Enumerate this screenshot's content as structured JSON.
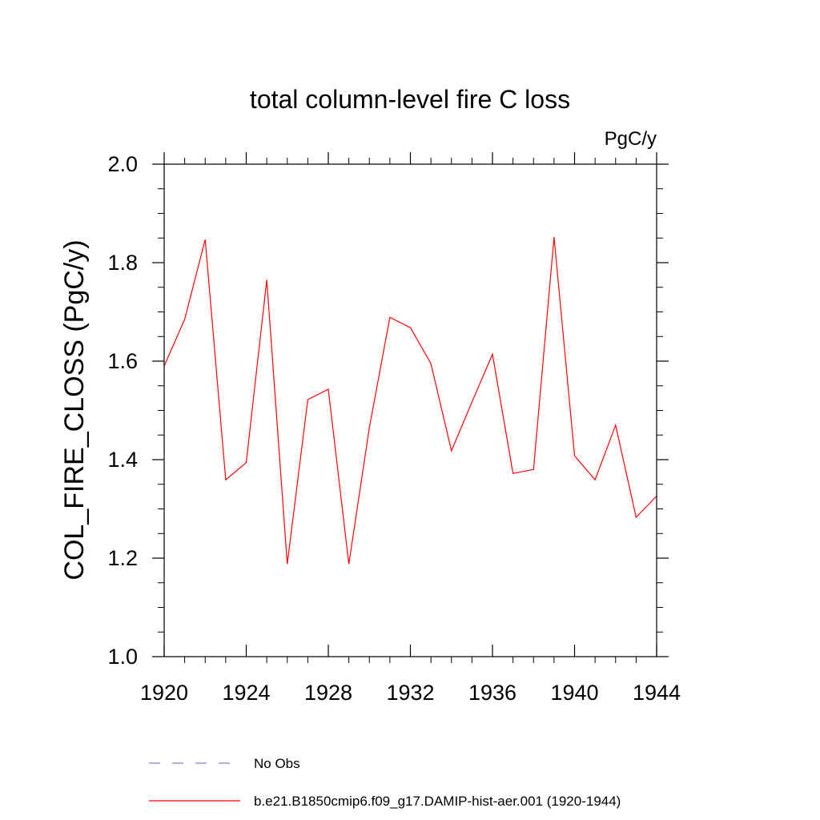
{
  "chart_data": {
    "type": "line",
    "title": "total column-level fire C loss",
    "units_label": "PgC/y",
    "ylabel": "COL_FIRE_CLOSS  (PgC/y)",
    "xlabel": "",
    "xlim": [
      1920,
      1944
    ],
    "ylim": [
      1.0,
      2.0
    ],
    "x_ticks": [
      1920,
      1924,
      1928,
      1932,
      1936,
      1940,
      1944
    ],
    "y_ticks": [
      1.0,
      1.2,
      1.4,
      1.6,
      1.8,
      2.0
    ],
    "y_tick_labels": [
      "1.0",
      "1.2",
      "1.4",
      "1.6",
      "1.8",
      "2.0"
    ],
    "grid": false,
    "legend_position": "bottom",
    "series": [
      {
        "name": "b.e21.B1850cmip6.f09_g17.DAMIP-hist-aer.001 (1920-1944)",
        "color": "#ff0000",
        "dash": "solid",
        "x": [
          1920,
          1921,
          1922,
          1923,
          1924,
          1925,
          1926,
          1927,
          1928,
          1929,
          1930,
          1931,
          1932,
          1933,
          1934,
          1935,
          1936,
          1937,
          1938,
          1939,
          1940,
          1941,
          1942,
          1943,
          1944
        ],
        "y": [
          1.59,
          1.685,
          1.847,
          1.359,
          1.394,
          1.765,
          1.188,
          1.522,
          1.543,
          1.188,
          1.465,
          1.689,
          1.668,
          1.595,
          1.418,
          1.517,
          1.614,
          1.372,
          1.38,
          1.852,
          1.408,
          1.359,
          1.47,
          1.283,
          1.326
        ]
      }
    ],
    "legend": [
      {
        "label": "No Obs",
        "color": "#8080c0",
        "dash": "dashed"
      },
      {
        "label": "b.e21.B1850cmip6.f09_g17.DAMIP-hist-aer.001 (1920-1944)",
        "color": "#ff0000",
        "dash": "solid"
      }
    ]
  }
}
